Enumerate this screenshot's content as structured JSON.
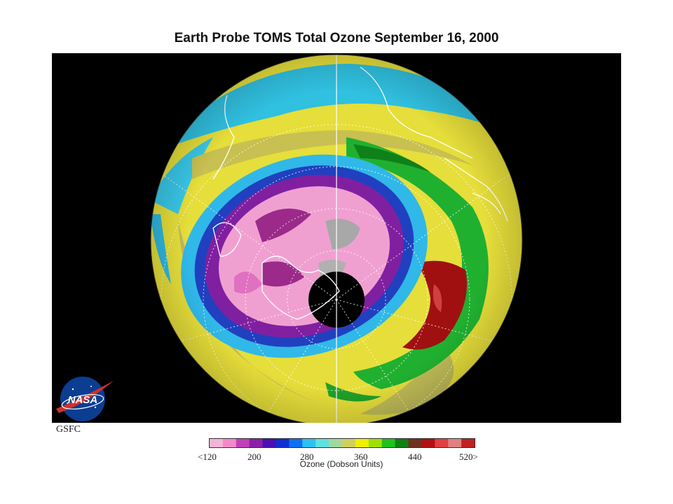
{
  "title": "Earth Probe TOMS Total Ozone September 16, 2000",
  "agency_label": "GSFC",
  "logo": {
    "icon": "nasa-meatball-icon",
    "text": "NASA"
  },
  "colorbar": {
    "label": "Ozone (Dobson Units)",
    "ticks": [
      "<120",
      "200",
      "280",
      "360",
      "440",
      "520>"
    ],
    "colors": [
      "#f2b4d8",
      "#f08ac8",
      "#c040b8",
      "#8a20a8",
      "#4a10b0",
      "#1030d0",
      "#1070f0",
      "#30c0f0",
      "#60e0e0",
      "#a0d8a0",
      "#d0d060",
      "#f0f000",
      "#a0e000",
      "#20c020",
      "#108010",
      "#703020",
      "#b01010",
      "#e04040",
      "#e08080",
      "#c02020"
    ]
  },
  "map": {
    "projection": "south polar orthographic",
    "legend_colors": {
      "hole_core": "#f0a0d0",
      "hole_edge": "#8020a0",
      "ring_blue": "#2040d0",
      "cyan": "#30c8e8",
      "yellow": "#e8e040",
      "olive": "#c0c060",
      "green": "#20b030",
      "red": "#a01010",
      "gray": "#b0b0b0",
      "no_data": "#000000"
    }
  }
}
